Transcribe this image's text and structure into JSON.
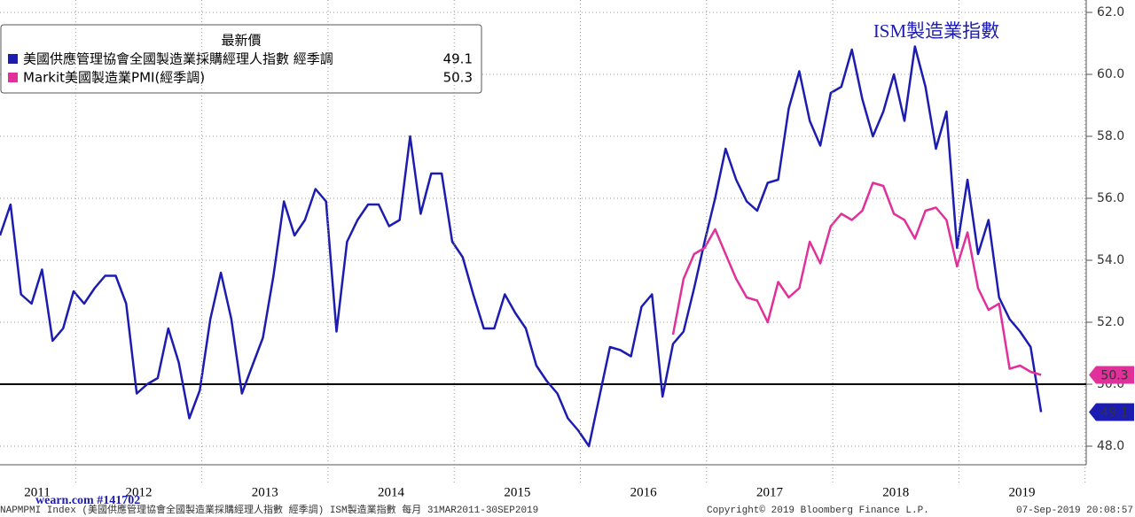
{
  "chart_data": {
    "type": "line",
    "annotation": "ISM製造業指數",
    "legend_title": "最新價",
    "legend_position": "upper left",
    "series": [
      {
        "name": "美國供應管理協會全國製造業採購經理人指數 經季調",
        "color": "#1c1cb0",
        "values": [
          54.8,
          55.8,
          52.9,
          52.6,
          53.7,
          51.4,
          51.8,
          53.0,
          52.6,
          53.1,
          53.5,
          53.5,
          52.6,
          49.7,
          50.0,
          50.2,
          51.8,
          50.7,
          48.9,
          49.8,
          52.1,
          53.6,
          52.1,
          49.7,
          50.6,
          51.5,
          53.5,
          55.9,
          54.8,
          55.3,
          56.3,
          55.9,
          51.7,
          54.6,
          55.3,
          55.8,
          55.8,
          55.1,
          55.3,
          58.0,
          55.5,
          56.8,
          56.8,
          54.6,
          54.1,
          52.9,
          51.8,
          51.8,
          52.9,
          52.3,
          51.8,
          50.6,
          50.1,
          49.7,
          48.9,
          48.5,
          48.0,
          49.6,
          51.2,
          51.1,
          50.9,
          52.5,
          52.9,
          49.6,
          51.3,
          51.7,
          53.1,
          54.6,
          56.0,
          57.6,
          56.6,
          55.9,
          55.6,
          56.5,
          56.6,
          58.9,
          60.1,
          58.5,
          57.7,
          59.4,
          59.6,
          60.8,
          59.2,
          58.0,
          58.8,
          60.0,
          58.5,
          60.9,
          59.6,
          57.6,
          58.8,
          54.4,
          56.6,
          54.2,
          55.3,
          52.8,
          52.1,
          51.7,
          51.2,
          49.1
        ]
      },
      {
        "name": "Markit美國製造業PMI(經季調)",
        "color": "#e0309a",
        "values": [
          null,
          null,
          null,
          null,
          null,
          null,
          null,
          null,
          null,
          null,
          null,
          null,
          null,
          null,
          null,
          null,
          null,
          null,
          null,
          null,
          null,
          null,
          null,
          null,
          null,
          null,
          null,
          null,
          null,
          null,
          null,
          null,
          null,
          null,
          null,
          null,
          null,
          null,
          null,
          null,
          null,
          null,
          null,
          null,
          null,
          null,
          null,
          null,
          null,
          null,
          null,
          null,
          null,
          null,
          null,
          null,
          null,
          null,
          null,
          null,
          null,
          null,
          null,
          null,
          51.6,
          53.4,
          54.2,
          54.4,
          55.0,
          54.2,
          53.4,
          52.8,
          52.7,
          52.0,
          53.3,
          52.8,
          53.1,
          54.6,
          53.9,
          55.1,
          55.5,
          55.3,
          55.6,
          56.5,
          56.4,
          55.5,
          55.3,
          54.7,
          55.6,
          55.7,
          55.3,
          53.8,
          54.9,
          53.1,
          52.4,
          52.6,
          50.5,
          50.6,
          50.4,
          50.3
        ]
      }
    ],
    "reference_line": 50,
    "years": [
      "2011",
      "2012",
      "2013",
      "2014",
      "2015",
      "2016",
      "2017",
      "2018",
      "2019"
    ],
    "ylim": [
      47.4,
      62.4
    ],
    "yticks": [
      {
        "value": 48,
        "label": "48.0"
      },
      {
        "value": 50,
        "label": "50.0"
      },
      {
        "value": 52,
        "label": "52.0"
      },
      {
        "value": 54,
        "label": "54.0"
      },
      {
        "value": 56,
        "label": "56.0"
      },
      {
        "value": 58,
        "label": "58.0"
      },
      {
        "value": 60,
        "label": "60.0"
      },
      {
        "value": 62,
        "label": "62.0"
      }
    ],
    "grid": true,
    "footer_left": "NAPMPMI Index (美國供應管理協會全國製造業採購經理人指數 經季調) ISM製造業指數  每月 31MAR2011-30SEP2019",
    "footer_center": "Copyright© 2019 Bloomberg Finance L.P.",
    "footer_right": "07-Sep-2019 20:08:57",
    "watermark": "wearn.com #141702"
  }
}
